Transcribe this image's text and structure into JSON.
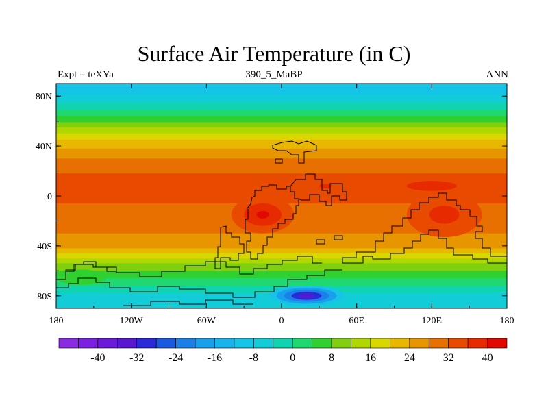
{
  "chart_data": {
    "type": "heatmap",
    "title": "Surface Air Temperature (in C)",
    "subtitle_left": "Expt = teXYa",
    "subtitle_center": "390_5_MaBP",
    "subtitle_right": "ANN",
    "x_ticks": [
      "180",
      "120W",
      "60W",
      "0",
      "60E",
      "120E",
      "180"
    ],
    "x_tick_values": [
      -180,
      -120,
      -60,
      0,
      60,
      120,
      180
    ],
    "y_ticks": [
      "80N",
      "40N",
      "0",
      "40S",
      "80S"
    ],
    "y_tick_values": [
      80,
      40,
      0,
      -40,
      -80
    ],
    "xlim": [
      -180,
      180
    ],
    "ylim": [
      -90,
      90
    ],
    "colorbar": {
      "levels": [
        -44,
        -40,
        -36,
        -32,
        -28,
        -24,
        -20,
        -16,
        -12,
        -8,
        -4,
        0,
        4,
        8,
        12,
        16,
        20,
        24,
        28,
        32,
        36,
        40,
        44
      ],
      "labels": [
        "-40",
        "-32",
        "-24",
        "-16",
        "-8",
        "0",
        "8",
        "16",
        "24",
        "32",
        "40"
      ],
      "label_values": [
        -40,
        -32,
        -24,
        -16,
        -8,
        0,
        8,
        16,
        24,
        32,
        40
      ],
      "colors": [
        "#8a2be2",
        "#7b1fe0",
        "#6a1ad8",
        "#5a17d0",
        "#2a2ad8",
        "#1a5ae0",
        "#1a80e8",
        "#19a0ec",
        "#1ab4ec",
        "#15c4e6",
        "#12ccd8",
        "#10d4b0",
        "#20d870",
        "#30d030",
        "#80d010",
        "#b0d800",
        "#d8d800",
        "#e8b800",
        "#e89600",
        "#e87000",
        "#e84a00",
        "#e82a00",
        "#e00800"
      ]
    },
    "zonal_mean_profile": [
      {
        "lat": 90,
        "value": -12
      },
      {
        "lat": 84,
        "value": -10
      },
      {
        "lat": 78,
        "value": -6
      },
      {
        "lat": 72,
        "value": -2
      },
      {
        "lat": 66,
        "value": 2
      },
      {
        "lat": 60,
        "value": 7
      },
      {
        "lat": 54,
        "value": 13
      },
      {
        "lat": 48,
        "value": 18
      },
      {
        "lat": 42,
        "value": 22
      },
      {
        "lat": 36,
        "value": 25
      },
      {
        "lat": 30,
        "value": 28
      },
      {
        "lat": 24,
        "value": 30
      },
      {
        "lat": 18,
        "value": 32
      },
      {
        "lat": 12,
        "value": 33
      },
      {
        "lat": 6,
        "value": 33
      },
      {
        "lat": 0,
        "value": 32
      },
      {
        "lat": -6,
        "value": 32
      },
      {
        "lat": -12,
        "value": 31
      },
      {
        "lat": -18,
        "value": 30
      },
      {
        "lat": -24,
        "value": 29
      },
      {
        "lat": -30,
        "value": 28
      },
      {
        "lat": -36,
        "value": 27
      },
      {
        "lat": -42,
        "value": 24
      },
      {
        "lat": -48,
        "value": 18
      },
      {
        "lat": -54,
        "value": 12
      },
      {
        "lat": -60,
        "value": 8
      },
      {
        "lat": -66,
        "value": 4
      },
      {
        "lat": -72,
        "value": 0
      },
      {
        "lat": -78,
        "value": -4
      },
      {
        "lat": -84,
        "value": -6
      },
      {
        "lat": -90,
        "value": -8
      }
    ],
    "hotspots": [
      {
        "lon": -15,
        "lat": -15,
        "value": 40,
        "lon_radius": 25,
        "lat_radius": 15
      },
      {
        "lon": 130,
        "lat": -15,
        "value": 38,
        "lon_radius": 30,
        "lat_radius": 18
      },
      {
        "lon": 120,
        "lat": 8,
        "value": 37,
        "lon_radius": 50,
        "lat_radius": 10
      },
      {
        "lon": 35,
        "lat": 8,
        "value": 36,
        "lon_radius": 25,
        "lat_radius": 8
      }
    ],
    "coldspots": [
      {
        "lon": 20,
        "lat": -80,
        "value": -36,
        "lon_radius": 30,
        "lat_radius": 8
      },
      {
        "lon": -160,
        "lat": -65,
        "value": 4,
        "lon_radius": 20,
        "lat_radius": 6
      }
    ]
  }
}
